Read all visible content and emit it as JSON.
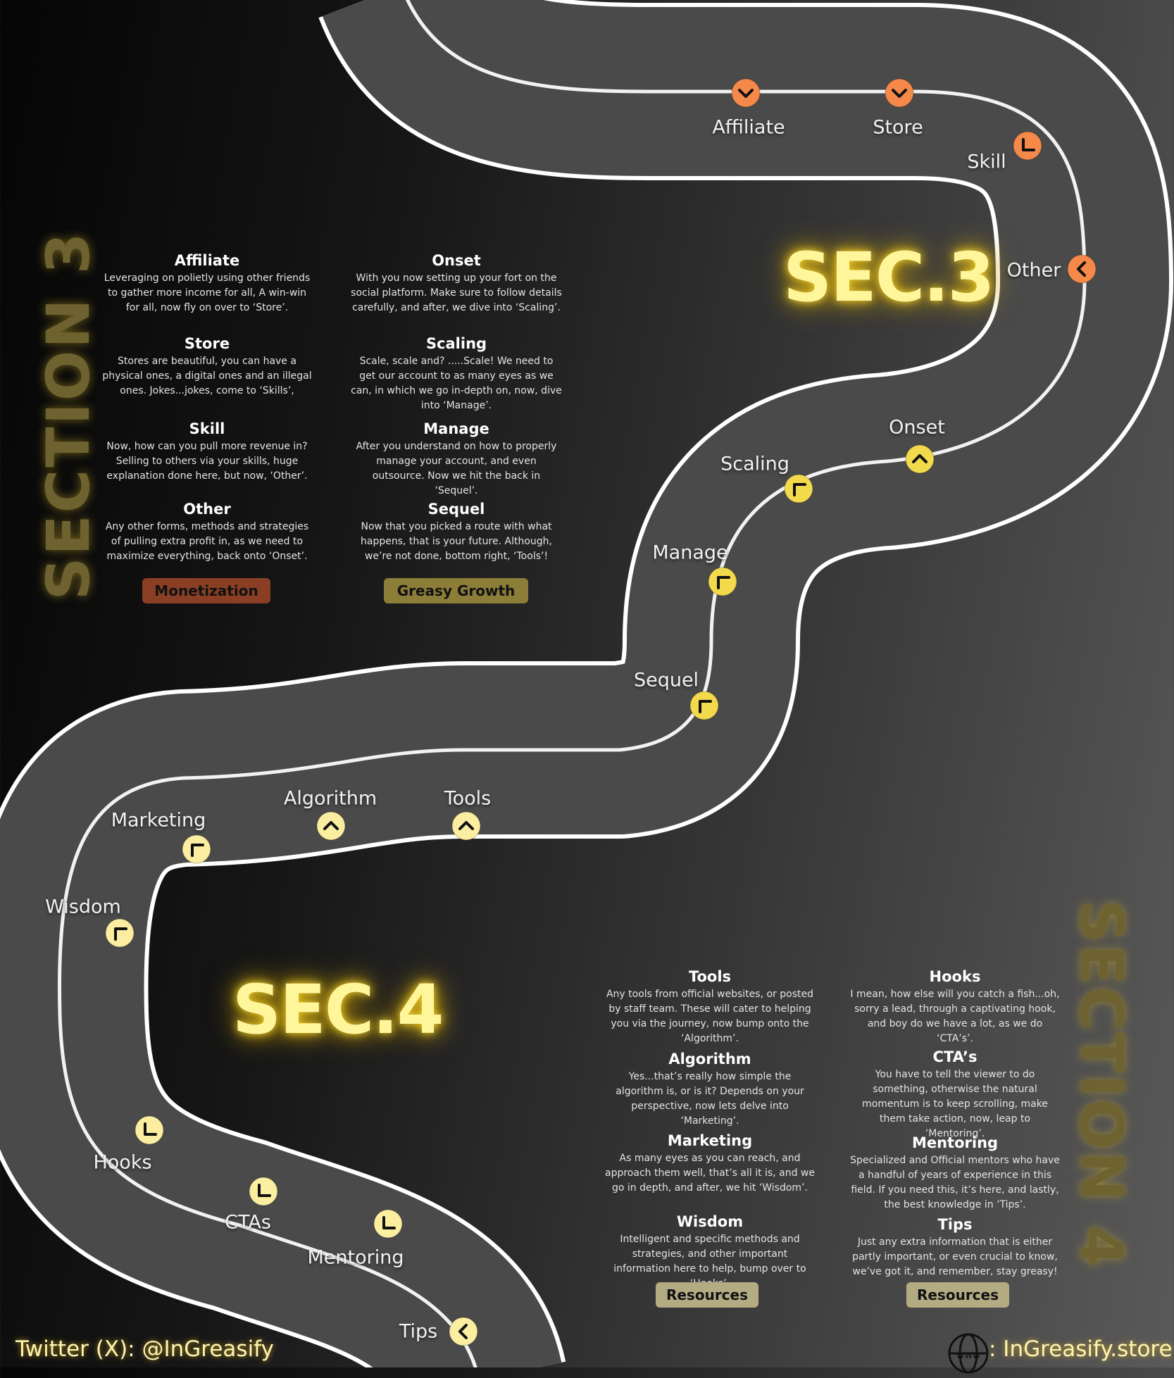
{
  "colors": {
    "sec3_marker": "#f5894a",
    "sec3b_marker": "#f3d94c",
    "sec4_marker": "#fbeea0",
    "monetization_tag": "#8a3f24",
    "greasy_tag": "#8c7d38",
    "resources_tag": "#b3ab82"
  },
  "sections": {
    "sec3_title": "SEC.3",
    "sec4_title": "SEC.4",
    "section3_vertical": "SECTION 3",
    "section4_vertical": "SECTION 4"
  },
  "milestones": [
    {
      "label": "Affiliate",
      "icon": "chevron-down-icon",
      "group": "sec3"
    },
    {
      "label": "Store",
      "icon": "chevron-down-icon",
      "group": "sec3"
    },
    {
      "label": "Skill",
      "icon": "corner-bottom-left-icon",
      "group": "sec3"
    },
    {
      "label": "Other",
      "icon": "chevron-left-icon",
      "group": "sec3"
    },
    {
      "label": "Onset",
      "icon": "chevron-up-icon",
      "group": "sec3b"
    },
    {
      "label": "Scaling",
      "icon": "corner-top-left-icon",
      "group": "sec3b"
    },
    {
      "label": "Manage",
      "icon": "corner-top-left-icon",
      "group": "sec3b"
    },
    {
      "label": "Sequel",
      "icon": "corner-top-left-icon",
      "group": "sec3b"
    },
    {
      "label": "Tools",
      "icon": "chevron-up-icon",
      "group": "sec4"
    },
    {
      "label": "Algorithm",
      "icon": "chevron-up-icon",
      "group": "sec4"
    },
    {
      "label": "Marketing",
      "icon": "corner-top-left-icon",
      "group": "sec4"
    },
    {
      "label": "Wisdom",
      "icon": "corner-top-left-icon",
      "group": "sec4"
    },
    {
      "label": "Hooks",
      "icon": "corner-bottom-left-icon",
      "group": "sec4"
    },
    {
      "label": "CTAs",
      "icon": "corner-bottom-left-icon",
      "group": "sec4"
    },
    {
      "label": "Mentoring",
      "icon": "corner-bottom-left-icon",
      "group": "sec4"
    },
    {
      "label": "Tips",
      "icon": "chevron-left-icon",
      "group": "sec4"
    }
  ],
  "sec3_left": [
    {
      "title": "Affiliate",
      "text": "Leveraging on polietly using other friends to gather more income for all, A win-win for all, now fly on over to ‘Store’."
    },
    {
      "title": "Store",
      "text": "Stores are beautiful, you can have a physical ones, a digital ones and an illegal ones. Jokes...jokes, come to ‘Skills’,"
    },
    {
      "title": "Skill",
      "text": "Now, how can you pull more revenue in? Selling to others via your skills, huge explanation done here, but now, ‘Other’."
    },
    {
      "title": "Other",
      "text": "Any other forms, methods and strategies of pulling extra profit in, as we need to maximize everything, back onto ‘Onset’."
    }
  ],
  "sec3_right": [
    {
      "title": "Onset",
      "text": "With you now setting up your fort on the social platform. Make sure to follow details carefully, and after, we dive into ‘Scaling’."
    },
    {
      "title": "Scaling",
      "text": "Scale, scale and? .....Scale! We need to get our account to as many eyes as we can, in which we go in-depth on, now, dive into ‘Manage’."
    },
    {
      "title": "Manage",
      "text": "After you understand on how to properly manage your account, and even outsource. Now we hit the back in ‘Sequel’."
    },
    {
      "title": "Sequel",
      "text": "Now that you picked a route with what happens, that is your future. Although, we’re not done, bottom right, ‘Tools’!"
    }
  ],
  "sec4_left": [
    {
      "title": "Tools",
      "text": "Any tools from official websites, or posted by staff team. These will cater to helping you via the journey, now bump onto the ‘Algorithm’."
    },
    {
      "title": "Algorithm",
      "text": "Yes...that’s really how simple the algorithm is, or is it? Depends on your perspective, now lets delve into ‘Marketing’."
    },
    {
      "title": "Marketing",
      "text": "As many eyes as you can reach, and approach them well, that’s all it is, and we go in depth, and after, we hit ‘Wisdom’."
    },
    {
      "title": "Wisdom",
      "text": "Intelligent and specific methods and strategies, and other important information here to help, bump over to ‘Hooks’."
    }
  ],
  "sec4_right": [
    {
      "title": "Hooks",
      "text": "I mean, how else will you catch a fish...oh, sorry a lead, through a captivating hook, and boy do we have a lot, as we do ‘CTA’s’."
    },
    {
      "title": "CTA’s",
      "text": "You have to tell the viewer to do something, otherwise the natural momentum is to keep scrolling, make them take action, now, leap to ‘Mentoring’."
    },
    {
      "title": "Mentoring",
      "text": "Specialized and Official mentors who have a handful of years of experience in this field. If you need this, it’s here, and lastly, the best knowledge in ‘Tips’."
    },
    {
      "title": "Tips",
      "text": "Just any extra information that is either partly important, or even crucial to know, we’ve got it, and remember, stay greasy!"
    }
  ],
  "tags": {
    "monetization": "Monetization",
    "greasy_growth": "Greasy Growth",
    "resources_left": "Resources",
    "resources_right": "Resources"
  },
  "footer": {
    "twitter": "Twitter (X): @InGreasify",
    "www": "www",
    "site": ": InGreasify.store"
  }
}
